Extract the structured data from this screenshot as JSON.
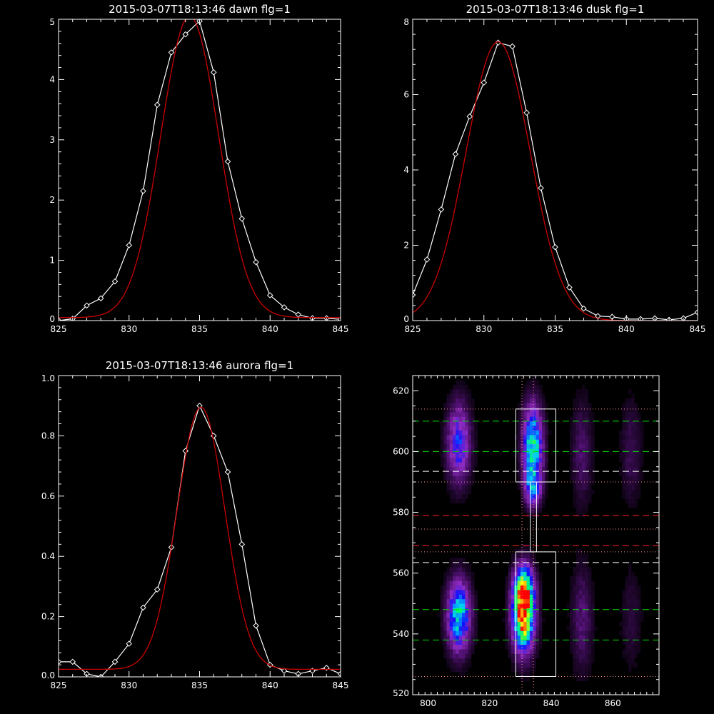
{
  "chart_data": [
    {
      "type": "line",
      "title": "2015-03-07T18:13:46 dawn flg=1",
      "xlabel": "",
      "ylabel": "",
      "xlim": [
        825,
        845
      ],
      "ylim": [
        0,
        5
      ],
      "xticks": [
        825,
        830,
        835,
        840,
        845
      ],
      "yticks": [
        0,
        1,
        2,
        3,
        4,
        5
      ],
      "series": [
        {
          "style": "data-diamonds",
          "color": "#ffffff",
          "x": [
            825,
            826,
            827,
            828,
            829,
            830,
            831,
            832,
            833,
            834,
            835,
            836,
            837,
            838,
            839,
            840,
            841,
            842,
            843,
            844,
            845
          ],
          "y": [
            0.0,
            0.03,
            0.25,
            0.37,
            0.65,
            1.25,
            2.15,
            3.58,
            4.45,
            4.75,
            4.97,
            4.12,
            2.64,
            1.69,
            0.97,
            0.42,
            0.22,
            0.1,
            0.04,
            0.04,
            0.02
          ]
        },
        {
          "style": "fit",
          "color": "#cc0000",
          "gauss": {
            "amp": 5.0,
            "center": 834.3,
            "sigma": 2.05,
            "offset": 0.05
          }
        }
      ]
    },
    {
      "type": "line",
      "title": "2015-03-07T18:13:46 dusk flg=1",
      "xlabel": "",
      "ylabel": "",
      "xlim": [
        825,
        845
      ],
      "ylim": [
        0,
        8
      ],
      "xticks": [
        825,
        830,
        835,
        840,
        845
      ],
      "yticks": [
        0,
        2,
        4,
        6,
        8
      ],
      "series": [
        {
          "style": "data-diamonds",
          "color": "#ffffff",
          "x": [
            825,
            826,
            827,
            828,
            829,
            830,
            831,
            832,
            833,
            834,
            835,
            836,
            837,
            838,
            839,
            840,
            841,
            842,
            843,
            844,
            845
          ],
          "y": [
            0.68,
            1.62,
            2.95,
            4.42,
            5.42,
            6.32,
            7.38,
            7.28,
            5.52,
            3.52,
            1.95,
            0.88,
            0.32,
            0.12,
            0.1,
            0.04,
            0.04,
            0.06,
            0.02,
            0.06,
            0.22
          ]
        },
        {
          "style": "fit",
          "color": "#cc0000",
          "gauss": {
            "amp": 7.4,
            "center": 831.0,
            "sigma": 2.25,
            "offset": 0.0
          }
        }
      ]
    },
    {
      "type": "line",
      "title": "2015-03-07T18:13:46 aurora flg=1",
      "xlabel": "",
      "ylabel": "",
      "xlim": [
        825,
        845
      ],
      "ylim": [
        0,
        1.0
      ],
      "xticks": [
        825,
        830,
        835,
        840,
        845
      ],
      "yticks": [
        0.0,
        0.2,
        0.4,
        0.6,
        0.8,
        1.0
      ],
      "ytick_labels": [
        "0.0",
        "0.2",
        "0.4",
        "0.6",
        "0.8",
        "1.0"
      ],
      "series": [
        {
          "style": "data-diamonds",
          "color": "#ffffff",
          "x": [
            825,
            826,
            827,
            828,
            829,
            830,
            831,
            832,
            833,
            834,
            835,
            836,
            837,
            838,
            839,
            840,
            841,
            842,
            843,
            844,
            845
          ],
          "y": [
            0.05,
            0.05,
            0.01,
            0.0,
            0.05,
            0.11,
            0.23,
            0.29,
            0.43,
            0.75,
            0.9,
            0.8,
            0.68,
            0.44,
            0.17,
            0.04,
            0.02,
            0.01,
            0.02,
            0.03,
            0.01
          ]
        },
        {
          "style": "fit",
          "color": "#cc0000",
          "gauss": {
            "amp": 0.87,
            "center": 835.1,
            "sigma": 1.7,
            "offset": 0.025
          }
        }
      ]
    },
    {
      "type": "heatmap",
      "title": "",
      "xlabel": "",
      "ylabel": "",
      "xlim": [
        795,
        875
      ],
      "ylim": [
        520,
        625
      ],
      "xticks": [
        800,
        820,
        840,
        860
      ],
      "yticks": [
        520,
        540,
        560,
        580,
        600,
        620
      ],
      "colors": [
        "#000000",
        "#4a0f6a",
        "#8f2bc0",
        "#1010ff",
        "#00c8ff",
        "#00ff60",
        "#ffff00",
        "#ff0000"
      ],
      "blobs": [
        {
          "x": 810,
          "y": 546,
          "sx": 2.6,
          "sy": 8,
          "amp": 0.62
        },
        {
          "x": 810,
          "y": 603,
          "sx": 2.6,
          "sy": 9,
          "amp": 0.42
        },
        {
          "x": 831,
          "y": 546,
          "sx": 2.4,
          "sy": 8,
          "amp": 1.0
        },
        {
          "x": 831,
          "y": 556,
          "sx": 2.2,
          "sy": 5,
          "amp": 0.5
        },
        {
          "x": 834,
          "y": 602,
          "sx": 2.2,
          "sy": 9,
          "amp": 0.68
        },
        {
          "x": 834,
          "y": 588,
          "sx": 1.8,
          "sy": 4,
          "amp": 0.38
        },
        {
          "x": 850,
          "y": 545,
          "sx": 2.4,
          "sy": 12,
          "amp": 0.16
        },
        {
          "x": 850,
          "y": 600,
          "sx": 2.4,
          "sy": 12,
          "amp": 0.14
        },
        {
          "x": 866,
          "y": 600,
          "sx": 2.4,
          "sy": 12,
          "amp": 0.11
        },
        {
          "x": 866,
          "y": 545,
          "sx": 2.4,
          "sy": 12,
          "amp": 0.08
        }
      ],
      "hlines": [
        {
          "y": 610,
          "color": "#00dd00",
          "dash": "dashed"
        },
        {
          "y": 600,
          "color": "#00dd00",
          "dash": "dashed"
        },
        {
          "y": 593.5,
          "color": "#ffffff",
          "dash": "dashed"
        },
        {
          "y": 579,
          "color": "#ff2020",
          "dash": "dashed"
        },
        {
          "y": 569,
          "color": "#ff2020",
          "dash": "dashed"
        },
        {
          "y": 563.5,
          "color": "#ffffff",
          "dash": "dashed"
        },
        {
          "y": 548,
          "color": "#00dd00",
          "dash": "dashed"
        },
        {
          "y": 538,
          "color": "#00dd00",
          "dash": "dashed"
        },
        {
          "y": 614,
          "color": "#ff9090",
          "dash": "dotted"
        },
        {
          "y": 590,
          "color": "#ff9090",
          "dash": "dotted"
        },
        {
          "y": 574.5,
          "color": "#ff9090",
          "dash": "dotted"
        },
        {
          "y": 567,
          "color": "#ff9090",
          "dash": "dotted"
        },
        {
          "y": 526,
          "color": "#ff9090",
          "dash": "dotted"
        }
      ],
      "vlines": [
        {
          "x": 830.5,
          "color": "#ff9090",
          "dash": "dotted"
        },
        {
          "x": 834.2,
          "color": "#ff9090",
          "dash": "dotted"
        }
      ],
      "boxes": [
        {
          "x0": 828.5,
          "x1": 841.5,
          "y0": 526,
          "y1": 567
        },
        {
          "x0": 828.5,
          "x1": 841.5,
          "y0": 590,
          "y1": 614
        }
      ],
      "connector": {
        "x0": 833.2,
        "x1": 835.2,
        "y0": 567,
        "y1": 590
      }
    }
  ]
}
